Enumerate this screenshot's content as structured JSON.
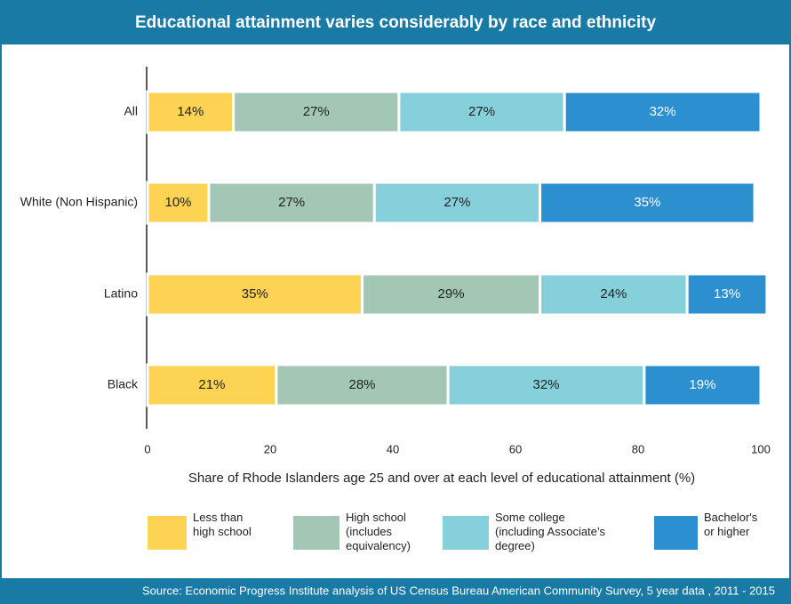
{
  "chart_data": {
    "type": "stacked_barh",
    "title": "Educational attainment varies considerably by race and ethnicity",
    "x_label": "Share of Rhode Islanders age 25 and over at each level of educational attainment (%)",
    "source": "Source: Economic Progress Institute analysis of US Census Bureau American Community Survey, 5 year data , 2011 - 2015",
    "categories": [
      "All",
      "White (Non Hispanic)",
      "Latino",
      "Black"
    ],
    "series": [
      {
        "name": "Less than\nhigh school",
        "color": "#fdd353",
        "values": [
          14,
          10,
          35,
          21
        ],
        "value_labels": [
          "14%",
          "10%",
          "35%",
          "21%"
        ]
      },
      {
        "name": "High school\n(includes\nequivalency)",
        "color": "#a3c6b5",
        "values": [
          27,
          27,
          29,
          28
        ],
        "value_labels": [
          "27%",
          "27%",
          "29%",
          "28%"
        ]
      },
      {
        "name": "Some college\n(including Associate’s\ndegree)",
        "color": "#85d0da",
        "values": [
          27,
          27,
          24,
          32
        ],
        "value_labels": [
          "27%",
          "27%",
          "24%",
          "32%"
        ]
      },
      {
        "name": "Bachelor's\nor higher",
        "color": "#2b8fd0",
        "values": [
          32,
          35,
          13,
          19
        ],
        "value_labels": [
          "32%",
          "35%",
          "13%",
          "19%"
        ]
      }
    ],
    "xlim": [
      0,
      100
    ],
    "xticks": [
      0,
      20,
      40,
      60,
      80,
      100
    ]
  }
}
